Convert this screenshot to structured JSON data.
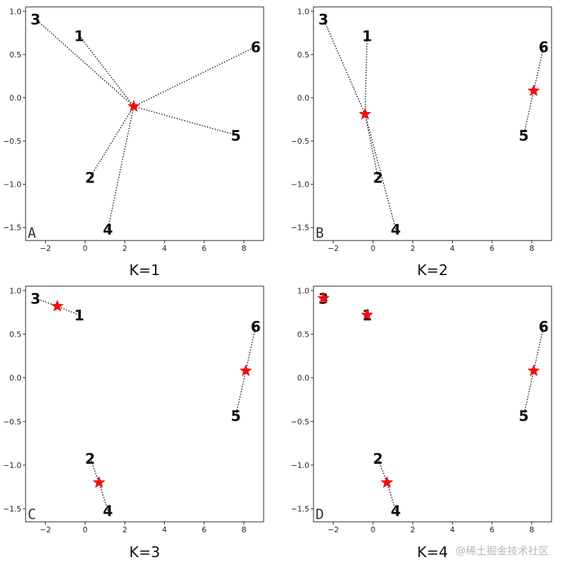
{
  "chart_data": [
    {
      "type": "scatter",
      "panel_label": "A",
      "caption": "K=1",
      "xlim": [
        -3,
        9
      ],
      "ylim": [
        -1.65,
        1.05
      ],
      "xticks": [
        -2,
        0,
        2,
        4,
        6,
        8
      ],
      "yticks": [
        -1.5,
        -1.0,
        -0.5,
        0.0,
        0.5,
        1.0
      ],
      "points": [
        {
          "label": "1",
          "x": -0.3,
          "y": 0.72,
          "cluster": 0
        },
        {
          "label": "2",
          "x": 0.25,
          "y": -0.92,
          "cluster": 0
        },
        {
          "label": "3",
          "x": -2.5,
          "y": 0.91,
          "cluster": 0
        },
        {
          "label": "4",
          "x": 1.15,
          "y": -1.52,
          "cluster": 0
        },
        {
          "label": "5",
          "x": 7.6,
          "y": -0.43,
          "cluster": 0
        },
        {
          "label": "6",
          "x": 8.6,
          "y": 0.59,
          "cluster": 0
        }
      ],
      "centroids": [
        {
          "x": 2.45,
          "y": -0.1
        }
      ]
    },
    {
      "type": "scatter",
      "panel_label": "B",
      "caption": "K=2",
      "xlim": [
        -3,
        9
      ],
      "ylim": [
        -1.65,
        1.05
      ],
      "xticks": [
        -2,
        0,
        2,
        4,
        6,
        8
      ],
      "yticks": [
        -1.5,
        -1.0,
        -0.5,
        0.0,
        0.5,
        1.0
      ],
      "points": [
        {
          "label": "1",
          "x": -0.3,
          "y": 0.72,
          "cluster": 0
        },
        {
          "label": "2",
          "x": 0.25,
          "y": -0.92,
          "cluster": 0
        },
        {
          "label": "3",
          "x": -2.5,
          "y": 0.91,
          "cluster": 0
        },
        {
          "label": "4",
          "x": 1.15,
          "y": -1.52,
          "cluster": 0
        },
        {
          "label": "5",
          "x": 7.6,
          "y": -0.43,
          "cluster": 1
        },
        {
          "label": "6",
          "x": 8.6,
          "y": 0.59,
          "cluster": 1
        }
      ],
      "centroids": [
        {
          "x": -0.4,
          "y": -0.19
        },
        {
          "x": 8.1,
          "y": 0.08
        }
      ]
    },
    {
      "type": "scatter",
      "panel_label": "C",
      "caption": "K=3",
      "xlim": [
        -3,
        9
      ],
      "ylim": [
        -1.65,
        1.05
      ],
      "xticks": [
        -2,
        0,
        2,
        4,
        6,
        8
      ],
      "yticks": [
        -1.5,
        -1.0,
        -0.5,
        0.0,
        0.5,
        1.0
      ],
      "points": [
        {
          "label": "1",
          "x": -0.3,
          "y": 0.72,
          "cluster": 0
        },
        {
          "label": "2",
          "x": 0.25,
          "y": -0.92,
          "cluster": 1
        },
        {
          "label": "3",
          "x": -2.5,
          "y": 0.91,
          "cluster": 0
        },
        {
          "label": "4",
          "x": 1.15,
          "y": -1.52,
          "cluster": 1
        },
        {
          "label": "5",
          "x": 7.6,
          "y": -0.43,
          "cluster": 2
        },
        {
          "label": "6",
          "x": 8.6,
          "y": 0.59,
          "cluster": 2
        }
      ],
      "centroids": [
        {
          "x": -1.4,
          "y": 0.82
        },
        {
          "x": 0.7,
          "y": -1.2
        },
        {
          "x": 8.1,
          "y": 0.08
        }
      ]
    },
    {
      "type": "scatter",
      "panel_label": "D",
      "caption": "K=4",
      "xlim": [
        -3,
        9
      ],
      "ylim": [
        -1.65,
        1.05
      ],
      "xticks": [
        -2,
        0,
        2,
        4,
        6,
        8
      ],
      "yticks": [
        -1.5,
        -1.0,
        -0.5,
        0.0,
        0.5,
        1.0
      ],
      "points": [
        {
          "label": "1",
          "x": -0.3,
          "y": 0.72,
          "cluster": 1
        },
        {
          "label": "2",
          "x": 0.25,
          "y": -0.92,
          "cluster": 2
        },
        {
          "label": "3",
          "x": -2.5,
          "y": 0.91,
          "cluster": 0
        },
        {
          "label": "4",
          "x": 1.15,
          "y": -1.52,
          "cluster": 2
        },
        {
          "label": "5",
          "x": 7.6,
          "y": -0.43,
          "cluster": 3
        },
        {
          "label": "6",
          "x": 8.6,
          "y": 0.59,
          "cluster": 3
        }
      ],
      "centroids": [
        {
          "x": -2.5,
          "y": 0.91
        },
        {
          "x": -0.3,
          "y": 0.72
        },
        {
          "x": 0.7,
          "y": -1.2
        },
        {
          "x": 8.1,
          "y": 0.08
        }
      ]
    }
  ],
  "style": {
    "centroid_color": "#ee1111",
    "line_color": "#111111",
    "axis_color": "#222222"
  },
  "watermark": "@稀土掘金技术社区"
}
